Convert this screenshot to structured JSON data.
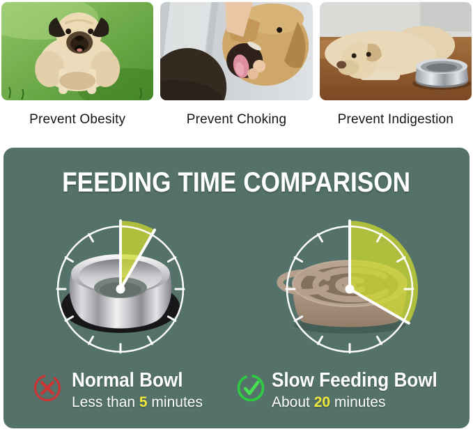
{
  "benefits": [
    {
      "caption": "Prevent Obesity",
      "image": "overweight-pug-on-grass"
    },
    {
      "caption": "Prevent Choking",
      "image": "owner-checking-dog-mouth"
    },
    {
      "caption": "Prevent Indigestion",
      "image": "dog-lying-beside-steel-bowl"
    }
  ],
  "comparison": {
    "title": "FEEDING TIME COMPARISON",
    "clocks": [
      {
        "label": "normal bowl clock",
        "minutes": 5,
        "wedge_start_deg": 0,
        "wedge_end_deg": 30,
        "bowl": "stainless-steel-bowl"
      },
      {
        "label": "slow feeding bowl clock",
        "minutes": 20,
        "wedge_start_deg": 0,
        "wedge_end_deg": 120,
        "bowl": "slow-feeder-maze-bowl"
      }
    ],
    "normal": {
      "icon": "x-mark",
      "title": "Normal Bowl",
      "time_prefix": "Less than ",
      "time_value": "5",
      "time_suffix": " minutes"
    },
    "slow": {
      "icon": "check-mark",
      "title": "Slow Feeding Bowl",
      "time_prefix": "About ",
      "time_value": "20",
      "time_suffix": " minutes"
    }
  },
  "colors": {
    "panel_green": "#54726a",
    "wedge_yellow_green": "#cfdb2e",
    "highlight_yellow": "#f2e83a",
    "error_red": "#cf3434",
    "success_green": "#2ecc40"
  }
}
